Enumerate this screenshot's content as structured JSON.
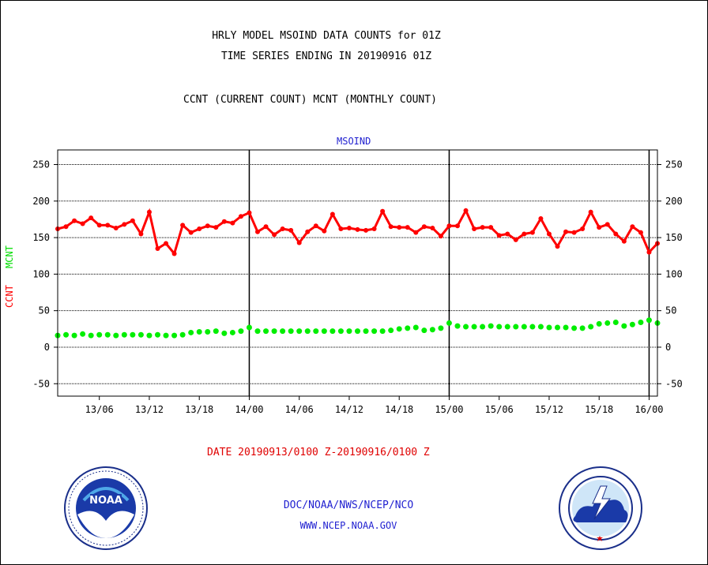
{
  "title_line1": "HRLY MODEL MSOIND DATA COUNTS for 01Z",
  "title_line2": "TIME SERIES ENDING IN 20190916 01Z",
  "subtitle": "CCNT (CURRENT COUNT) MCNT (MONTHLY COUNT)",
  "series_label": "MSOIND",
  "ylabel_ccnt": "CCNT",
  "ylabel_mcnt": "MCNT",
  "date_range": "DATE 20190913/0100 Z-20190916/0100 Z",
  "credit_org": "DOC/NOAA/NWS/NCEP/NCO",
  "credit_url": "WWW.NCEP.NOAA.GOV",
  "logos": {
    "left": "noaa-logo",
    "right": "nws-logo"
  },
  "colors": {
    "ccnt": "#ff0000",
    "mcnt": "#00ee00",
    "text_blue": "#1f1fd0",
    "date_red": "#e00000"
  },
  "chart_data": {
    "type": "line",
    "title": "MSOIND",
    "x_start_hour": 0,
    "x_end_hour": 72,
    "xticks": [
      {
        "hour": 5,
        "label": "13/06"
      },
      {
        "hour": 11,
        "label": "13/12"
      },
      {
        "hour": 17,
        "label": "13/18"
      },
      {
        "hour": 23,
        "label": "14/00"
      },
      {
        "hour": 29,
        "label": "14/06"
      },
      {
        "hour": 35,
        "label": "14/12"
      },
      {
        "hour": 41,
        "label": "14/18"
      },
      {
        "hour": 47,
        "label": "15/00"
      },
      {
        "hour": 53,
        "label": "15/06"
      },
      {
        "hour": 59,
        "label": "15/12"
      },
      {
        "hour": 65,
        "label": "15/18"
      },
      {
        "hour": 71,
        "label": "16/00"
      }
    ],
    "day_boundaries": [
      23,
      47,
      71
    ],
    "ylim": [
      -67,
      270
    ],
    "yticks": [
      -50,
      0,
      50,
      100,
      150,
      200,
      250
    ],
    "grid": true,
    "series": [
      {
        "name": "CCNT",
        "color": "#ff0000",
        "values": [
          162,
          165,
          173,
          169,
          177,
          167,
          167,
          163,
          168,
          173,
          155,
          185,
          135,
          142,
          128,
          167,
          157,
          162,
          166,
          164,
          172,
          170,
          179,
          184,
          158,
          165,
          154,
          162,
          160,
          143,
          158,
          166,
          159,
          182,
          162,
          163,
          161,
          160,
          162,
          186,
          165,
          164,
          164,
          157,
          165,
          163,
          152,
          166,
          166,
          187,
          162,
          164,
          164,
          153,
          155,
          147,
          155,
          157,
          176,
          155,
          138,
          158,
          157,
          162,
          185,
          164,
          168,
          155,
          145,
          165,
          157,
          130,
          142
        ]
      },
      {
        "name": "MCNT",
        "color": "#00ee00",
        "values": [
          16,
          17,
          16,
          18,
          16,
          17,
          17,
          16,
          17,
          17,
          17,
          16,
          17,
          16,
          16,
          17,
          20,
          21,
          21,
          22,
          19,
          20,
          22,
          27,
          22,
          22,
          22,
          22,
          22,
          22,
          22,
          22,
          22,
          22,
          22,
          22,
          22,
          22,
          22,
          22,
          23,
          25,
          26,
          27,
          23,
          24,
          26,
          33,
          29,
          28,
          28,
          28,
          29,
          28,
          28,
          28,
          28,
          28,
          28,
          27,
          27,
          27,
          26,
          26,
          28,
          32,
          33,
          34,
          29,
          31,
          34,
          37,
          33
        ]
      }
    ]
  }
}
